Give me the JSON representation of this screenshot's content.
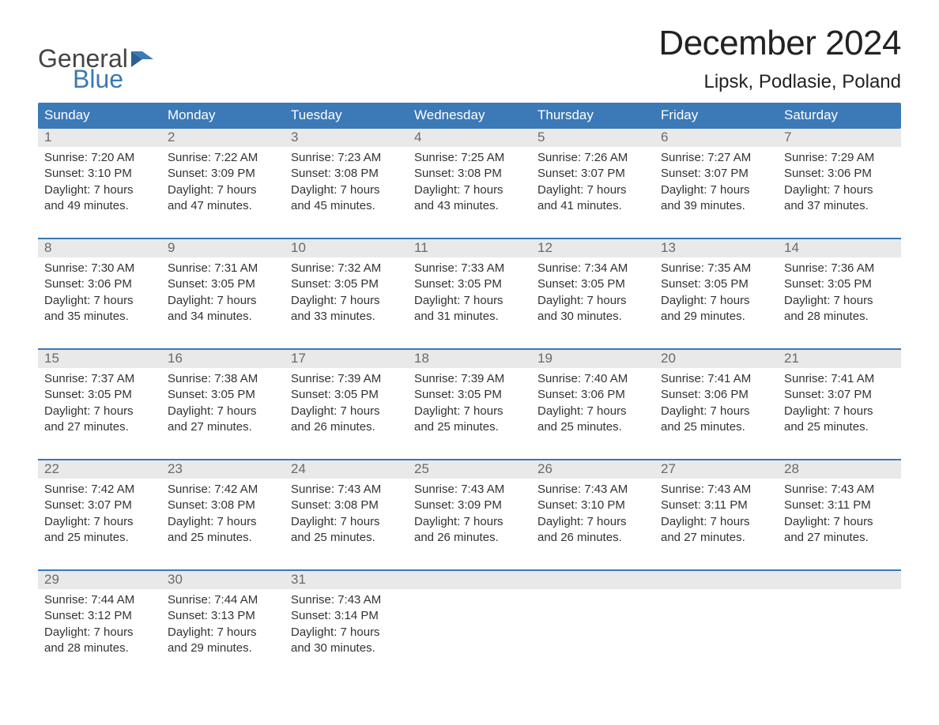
{
  "brand": {
    "word1": "General",
    "word2": "Blue",
    "word1_color": "#444444",
    "word2_color": "#3b79b7",
    "flag_color": "#3b79b7"
  },
  "header": {
    "month_title": "December 2024",
    "location": "Lipsk, Podlasie, Poland"
  },
  "style": {
    "header_bg": "#3b79b7",
    "header_text": "#ffffff",
    "daynum_bg": "#e9e9e9",
    "daynum_color": "#6a6a6a",
    "body_text": "#333333",
    "week_border": "#3b79b7",
    "page_bg": "#ffffff",
    "title_fontsize": 44,
    "location_fontsize": 24,
    "dow_fontsize": 17,
    "body_fontsize": 15
  },
  "days_of_week": [
    "Sunday",
    "Monday",
    "Tuesday",
    "Wednesday",
    "Thursday",
    "Friday",
    "Saturday"
  ],
  "weeks": [
    [
      {
        "n": "1",
        "sunrise": "Sunrise: 7:20 AM",
        "sunset": "Sunset: 3:10 PM",
        "d1": "Daylight: 7 hours",
        "d2": "and 49 minutes."
      },
      {
        "n": "2",
        "sunrise": "Sunrise: 7:22 AM",
        "sunset": "Sunset: 3:09 PM",
        "d1": "Daylight: 7 hours",
        "d2": "and 47 minutes."
      },
      {
        "n": "3",
        "sunrise": "Sunrise: 7:23 AM",
        "sunset": "Sunset: 3:08 PM",
        "d1": "Daylight: 7 hours",
        "d2": "and 45 minutes."
      },
      {
        "n": "4",
        "sunrise": "Sunrise: 7:25 AM",
        "sunset": "Sunset: 3:08 PM",
        "d1": "Daylight: 7 hours",
        "d2": "and 43 minutes."
      },
      {
        "n": "5",
        "sunrise": "Sunrise: 7:26 AM",
        "sunset": "Sunset: 3:07 PM",
        "d1": "Daylight: 7 hours",
        "d2": "and 41 minutes."
      },
      {
        "n": "6",
        "sunrise": "Sunrise: 7:27 AM",
        "sunset": "Sunset: 3:07 PM",
        "d1": "Daylight: 7 hours",
        "d2": "and 39 minutes."
      },
      {
        "n": "7",
        "sunrise": "Sunrise: 7:29 AM",
        "sunset": "Sunset: 3:06 PM",
        "d1": "Daylight: 7 hours",
        "d2": "and 37 minutes."
      }
    ],
    [
      {
        "n": "8",
        "sunrise": "Sunrise: 7:30 AM",
        "sunset": "Sunset: 3:06 PM",
        "d1": "Daylight: 7 hours",
        "d2": "and 35 minutes."
      },
      {
        "n": "9",
        "sunrise": "Sunrise: 7:31 AM",
        "sunset": "Sunset: 3:05 PM",
        "d1": "Daylight: 7 hours",
        "d2": "and 34 minutes."
      },
      {
        "n": "10",
        "sunrise": "Sunrise: 7:32 AM",
        "sunset": "Sunset: 3:05 PM",
        "d1": "Daylight: 7 hours",
        "d2": "and 33 minutes."
      },
      {
        "n": "11",
        "sunrise": "Sunrise: 7:33 AM",
        "sunset": "Sunset: 3:05 PM",
        "d1": "Daylight: 7 hours",
        "d2": "and 31 minutes."
      },
      {
        "n": "12",
        "sunrise": "Sunrise: 7:34 AM",
        "sunset": "Sunset: 3:05 PM",
        "d1": "Daylight: 7 hours",
        "d2": "and 30 minutes."
      },
      {
        "n": "13",
        "sunrise": "Sunrise: 7:35 AM",
        "sunset": "Sunset: 3:05 PM",
        "d1": "Daylight: 7 hours",
        "d2": "and 29 minutes."
      },
      {
        "n": "14",
        "sunrise": "Sunrise: 7:36 AM",
        "sunset": "Sunset: 3:05 PM",
        "d1": "Daylight: 7 hours",
        "d2": "and 28 minutes."
      }
    ],
    [
      {
        "n": "15",
        "sunrise": "Sunrise: 7:37 AM",
        "sunset": "Sunset: 3:05 PM",
        "d1": "Daylight: 7 hours",
        "d2": "and 27 minutes."
      },
      {
        "n": "16",
        "sunrise": "Sunrise: 7:38 AM",
        "sunset": "Sunset: 3:05 PM",
        "d1": "Daylight: 7 hours",
        "d2": "and 27 minutes."
      },
      {
        "n": "17",
        "sunrise": "Sunrise: 7:39 AM",
        "sunset": "Sunset: 3:05 PM",
        "d1": "Daylight: 7 hours",
        "d2": "and 26 minutes."
      },
      {
        "n": "18",
        "sunrise": "Sunrise: 7:39 AM",
        "sunset": "Sunset: 3:05 PM",
        "d1": "Daylight: 7 hours",
        "d2": "and 25 minutes."
      },
      {
        "n": "19",
        "sunrise": "Sunrise: 7:40 AM",
        "sunset": "Sunset: 3:06 PM",
        "d1": "Daylight: 7 hours",
        "d2": "and 25 minutes."
      },
      {
        "n": "20",
        "sunrise": "Sunrise: 7:41 AM",
        "sunset": "Sunset: 3:06 PM",
        "d1": "Daylight: 7 hours",
        "d2": "and 25 minutes."
      },
      {
        "n": "21",
        "sunrise": "Sunrise: 7:41 AM",
        "sunset": "Sunset: 3:07 PM",
        "d1": "Daylight: 7 hours",
        "d2": "and 25 minutes."
      }
    ],
    [
      {
        "n": "22",
        "sunrise": "Sunrise: 7:42 AM",
        "sunset": "Sunset: 3:07 PM",
        "d1": "Daylight: 7 hours",
        "d2": "and 25 minutes."
      },
      {
        "n": "23",
        "sunrise": "Sunrise: 7:42 AM",
        "sunset": "Sunset: 3:08 PM",
        "d1": "Daylight: 7 hours",
        "d2": "and 25 minutes."
      },
      {
        "n": "24",
        "sunrise": "Sunrise: 7:43 AM",
        "sunset": "Sunset: 3:08 PM",
        "d1": "Daylight: 7 hours",
        "d2": "and 25 minutes."
      },
      {
        "n": "25",
        "sunrise": "Sunrise: 7:43 AM",
        "sunset": "Sunset: 3:09 PM",
        "d1": "Daylight: 7 hours",
        "d2": "and 26 minutes."
      },
      {
        "n": "26",
        "sunrise": "Sunrise: 7:43 AM",
        "sunset": "Sunset: 3:10 PM",
        "d1": "Daylight: 7 hours",
        "d2": "and 26 minutes."
      },
      {
        "n": "27",
        "sunrise": "Sunrise: 7:43 AM",
        "sunset": "Sunset: 3:11 PM",
        "d1": "Daylight: 7 hours",
        "d2": "and 27 minutes."
      },
      {
        "n": "28",
        "sunrise": "Sunrise: 7:43 AM",
        "sunset": "Sunset: 3:11 PM",
        "d1": "Daylight: 7 hours",
        "d2": "and 27 minutes."
      }
    ],
    [
      {
        "n": "29",
        "sunrise": "Sunrise: 7:44 AM",
        "sunset": "Sunset: 3:12 PM",
        "d1": "Daylight: 7 hours",
        "d2": "and 28 minutes."
      },
      {
        "n": "30",
        "sunrise": "Sunrise: 7:44 AM",
        "sunset": "Sunset: 3:13 PM",
        "d1": "Daylight: 7 hours",
        "d2": "and 29 minutes."
      },
      {
        "n": "31",
        "sunrise": "Sunrise: 7:43 AM",
        "sunset": "Sunset: 3:14 PM",
        "d1": "Daylight: 7 hours",
        "d2": "and 30 minutes."
      },
      {
        "empty": true
      },
      {
        "empty": true
      },
      {
        "empty": true
      },
      {
        "empty": true
      }
    ]
  ]
}
